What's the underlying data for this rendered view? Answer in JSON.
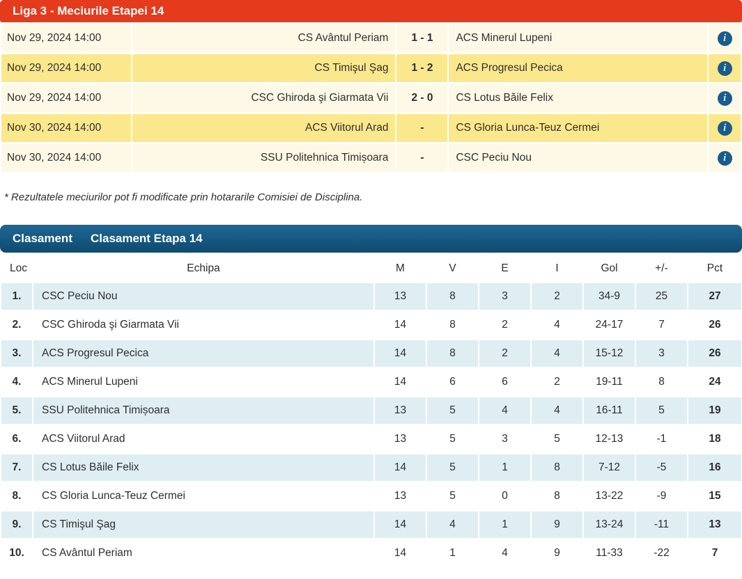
{
  "fixtures": {
    "title": "Liga 3 - Meciurile Etapei 14",
    "info_icon_glyph": "i",
    "rows": [
      {
        "date": "Nov 29, 2024 14:00",
        "home": "CS Avântul Periam",
        "score": "1 - 1",
        "away": "ACS Minerul Lupeni"
      },
      {
        "date": "Nov 29, 2024 14:00",
        "home": "CS Timişul Şag",
        "score": "1 - 2",
        "away": "ACS Progresul Pecica"
      },
      {
        "date": "Nov 29, 2024 14:00",
        "home": "CSC Ghiroda şi Giarmata Vii",
        "score": "2 - 0",
        "away": "CS Lotus Băile Felix"
      },
      {
        "date": "Nov 30, 2024 14:00",
        "home": "ACS Viitorul Arad",
        "score": "-",
        "away": "CS Gloria Lunca-Teuz Cermei"
      },
      {
        "date": "Nov 30, 2024 14:00",
        "home": "SSU Politehnica Timișoara",
        "score": "-",
        "away": "CSC Peciu Nou"
      }
    ],
    "footnote": "* Rezultatele meciurilor pot fi modificate prin hotararile Comisiei de Disciplina."
  },
  "standings": {
    "tab_label": "Clasament",
    "title": "Clasament Etapa 14",
    "columns": [
      "Loc",
      "Echipa",
      "M",
      "V",
      "E",
      "I",
      "Gol",
      "+/-",
      "Pct"
    ],
    "rows": [
      {
        "loc": "1.",
        "team": "CSC Peciu Nou",
        "m": "13",
        "v": "8",
        "e": "3",
        "i": "2",
        "gol": "34-9",
        "diff": "25",
        "pct": "27"
      },
      {
        "loc": "2.",
        "team": "CSC Ghiroda şi Giarmata Vii",
        "m": "14",
        "v": "8",
        "e": "2",
        "i": "4",
        "gol": "24-17",
        "diff": "7",
        "pct": "26"
      },
      {
        "loc": "3.",
        "team": "ACS Progresul Pecica",
        "m": "14",
        "v": "8",
        "e": "2",
        "i": "4",
        "gol": "15-12",
        "diff": "3",
        "pct": "26"
      },
      {
        "loc": "4.",
        "team": "ACS Minerul Lupeni",
        "m": "14",
        "v": "6",
        "e": "6",
        "i": "2",
        "gol": "19-11",
        "diff": "8",
        "pct": "24"
      },
      {
        "loc": "5.",
        "team": "SSU Politehnica Timișoara",
        "m": "13",
        "v": "5",
        "e": "4",
        "i": "4",
        "gol": "16-11",
        "diff": "5",
        "pct": "19"
      },
      {
        "loc": "6.",
        "team": "ACS Viitorul Arad",
        "m": "13",
        "v": "5",
        "e": "3",
        "i": "5",
        "gol": "12-13",
        "diff": "-1",
        "pct": "18"
      },
      {
        "loc": "7.",
        "team": "CS Lotus Băile Felix",
        "m": "14",
        "v": "5",
        "e": "1",
        "i": "8",
        "gol": "7-12",
        "diff": "-5",
        "pct": "16"
      },
      {
        "loc": "8.",
        "team": "CS Gloria Lunca-Teuz Cermei",
        "m": "13",
        "v": "5",
        "e": "0",
        "i": "8",
        "gol": "13-22",
        "diff": "-9",
        "pct": "15"
      },
      {
        "loc": "9.",
        "team": "CS Timişul Şag",
        "m": "14",
        "v": "4",
        "e": "1",
        "i": "9",
        "gol": "13-24",
        "diff": "-11",
        "pct": "13"
      },
      {
        "loc": "10.",
        "team": "CS Avântul Periam",
        "m": "14",
        "v": "1",
        "e": "4",
        "i": "9",
        "gol": "11-33",
        "diff": "-22",
        "pct": "7"
      }
    ]
  },
  "colors": {
    "header_red": "#e63a1d",
    "row_cream": "#fef9e7",
    "row_yellow": "#fce88c",
    "header_blue_top": "#1e6795",
    "header_blue_bottom": "#0f4a70",
    "row_lightblue": "#dfeef3",
    "info_icon_bg": "#1a5c8d"
  }
}
